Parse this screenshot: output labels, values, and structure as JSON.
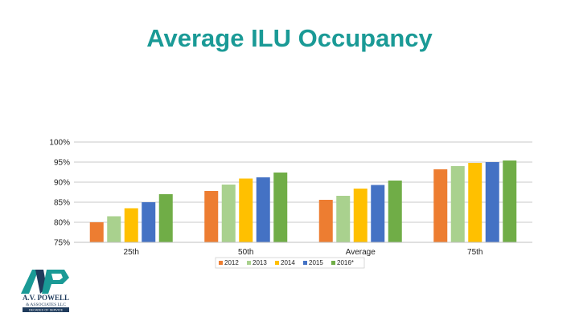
{
  "slide": {
    "title": "Average ILU Occupancy"
  },
  "colors": {
    "title": "#1a9a96",
    "series": [
      "#ed7d31",
      "#a9d18e",
      "#ffc000",
      "#4472c4",
      "#70ad47"
    ],
    "grid": "#c8c8c8",
    "logo_primary": "#1a9a96",
    "logo_dark": "#1f3b5c"
  },
  "logo": {
    "name": "A.V. POWELL",
    "line2": "& ASSOCIATES LLC",
    "tagline": "DECADES OF SERVICE"
  },
  "chart_data": {
    "type": "bar",
    "title": "",
    "xlabel": "",
    "ylabel": "",
    "categories": [
      "25th",
      "50th",
      "Average",
      "75th"
    ],
    "series": [
      {
        "name": "2012",
        "values": [
          80.0,
          87.8,
          85.6,
          93.2
        ]
      },
      {
        "name": "2013",
        "values": [
          81.5,
          89.4,
          86.6,
          94.0
        ]
      },
      {
        "name": "2014",
        "values": [
          83.5,
          90.9,
          88.4,
          94.8
        ]
      },
      {
        "name": "2015",
        "values": [
          85.0,
          91.2,
          89.3,
          95.0
        ]
      },
      {
        "name": "2016*",
        "values": [
          87.0,
          92.4,
          90.4,
          95.4
        ]
      }
    ],
    "ylim": [
      75,
      100
    ],
    "yticks": [
      75,
      80,
      85,
      90,
      95,
      100
    ],
    "ytick_labels": [
      "75%",
      "80%",
      "85%",
      "90%",
      "95%",
      "100%"
    ],
    "grid": true,
    "legend_position": "bottom"
  }
}
